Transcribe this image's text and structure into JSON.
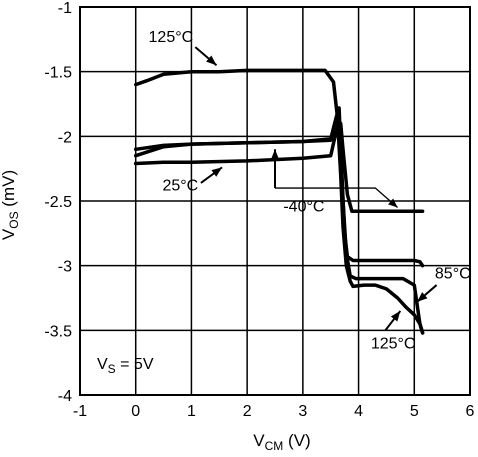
{
  "chart_data": {
    "type": "line",
    "xlabel": {
      "main": "V",
      "sub": "CM",
      "unit": " (V)"
    },
    "ylabel": {
      "main": "V",
      "sub": "OS",
      "unit": " (mV)"
    },
    "xlim": [
      -1,
      6
    ],
    "ylim": [
      -4,
      -1
    ],
    "xticks": [
      "-1",
      "0",
      "1",
      "2",
      "3",
      "4",
      "5",
      "6"
    ],
    "yticks": [
      "-1",
      "-1.5",
      "-2",
      "-2.5",
      "-3",
      "-3.5",
      "-4"
    ],
    "grid": true,
    "condition": {
      "main": "V",
      "sub": "S",
      "rest": " = 5V"
    },
    "series": [
      {
        "name": "125°C",
        "x": [
          0,
          0.2,
          0.5,
          1.0,
          1.5,
          2.0,
          2.5,
          3.0,
          3.4,
          3.55,
          3.62,
          3.68,
          3.72,
          3.78,
          3.85,
          3.9,
          4.1,
          4.3,
          4.5,
          4.7,
          4.85,
          5.0,
          5.1,
          5.15
        ],
        "y": [
          -1.6,
          -1.57,
          -1.52,
          -1.5,
          -1.5,
          -1.49,
          -1.49,
          -1.49,
          -1.49,
          -1.58,
          -1.85,
          -2.3,
          -2.7,
          -3.0,
          -3.12,
          -3.16,
          -3.15,
          -3.15,
          -3.18,
          -3.25,
          -3.32,
          -3.38,
          -3.45,
          -3.52
        ]
      },
      {
        "name": "85°C",
        "x": [
          0,
          0.5,
          1.0,
          2.0,
          3.0,
          3.5,
          3.62,
          3.68,
          3.72,
          3.78,
          3.85,
          3.95,
          4.2,
          4.5,
          4.8,
          5.0,
          5.05,
          5.1,
          5.15
        ],
        "y": [
          -2.1,
          -2.07,
          -2.06,
          -2.05,
          -2.04,
          -2.03,
          -1.95,
          -2.1,
          -2.5,
          -2.9,
          -3.08,
          -3.1,
          -3.1,
          -3.1,
          -3.1,
          -3.15,
          -3.3,
          -3.45,
          -3.52
        ]
      },
      {
        "name": "25°C",
        "x": [
          0,
          0.5,
          1.0,
          2.0,
          3.0,
          3.5,
          3.6,
          3.65,
          3.7,
          3.75,
          3.8,
          3.9,
          4.3,
          4.8,
          5.0,
          5.1,
          5.15
        ],
        "y": [
          -2.15,
          -2.08,
          -2.06,
          -2.05,
          -2.04,
          -2.02,
          -1.85,
          -1.78,
          -2.3,
          -2.75,
          -2.93,
          -2.96,
          -2.96,
          -2.96,
          -2.96,
          -2.97,
          -3.0
        ]
      },
      {
        "name": "-40°C",
        "x": [
          0,
          0.5,
          1.0,
          2.0,
          3.0,
          3.5,
          3.62,
          3.68,
          3.72,
          3.8,
          3.88,
          4.0,
          4.5,
          5.0,
          5.15
        ],
        "y": [
          -2.21,
          -2.2,
          -2.2,
          -2.19,
          -2.17,
          -2.15,
          -1.92,
          -1.9,
          -2.1,
          -2.45,
          -2.58,
          -2.58,
          -2.58,
          -2.58,
          -2.58
        ]
      }
    ],
    "annotations": [
      {
        "text": "125°C",
        "label_at": [
          0.23,
          -1.27
        ],
        "arrow_from": [
          1.07,
          -1.31
        ],
        "arrow_to": [
          1.45,
          -1.45
        ]
      },
      {
        "text": "25°C",
        "label_at": [
          0.48,
          -2.42
        ],
        "arrow_from": [
          1.17,
          -2.36
        ],
        "arrow_to": [
          1.55,
          -2.24
        ]
      },
      {
        "text": "-40°C",
        "label_at": [
          2.65,
          -2.58
        ],
        "arrow_from": [
          2.5,
          -2.4
        ],
        "arrow_to": [
          2.5,
          -2.1
        ],
        "leader": [
          [
            2.5,
            -2.4
          ],
          [
            4.3,
            -2.4
          ],
          [
            4.7,
            -2.55
          ]
        ]
      },
      {
        "text": "85°C",
        "label_at": [
          5.37,
          -3.1
        ],
        "arrow_from": [
          5.4,
          -3.15
        ],
        "arrow_to": [
          5.05,
          -3.28
        ]
      },
      {
        "text": "125°C",
        "label_at": [
          4.22,
          -3.64
        ],
        "arrow_from": [
          4.48,
          -3.5
        ],
        "arrow_to": [
          4.75,
          -3.35
        ]
      }
    ]
  }
}
